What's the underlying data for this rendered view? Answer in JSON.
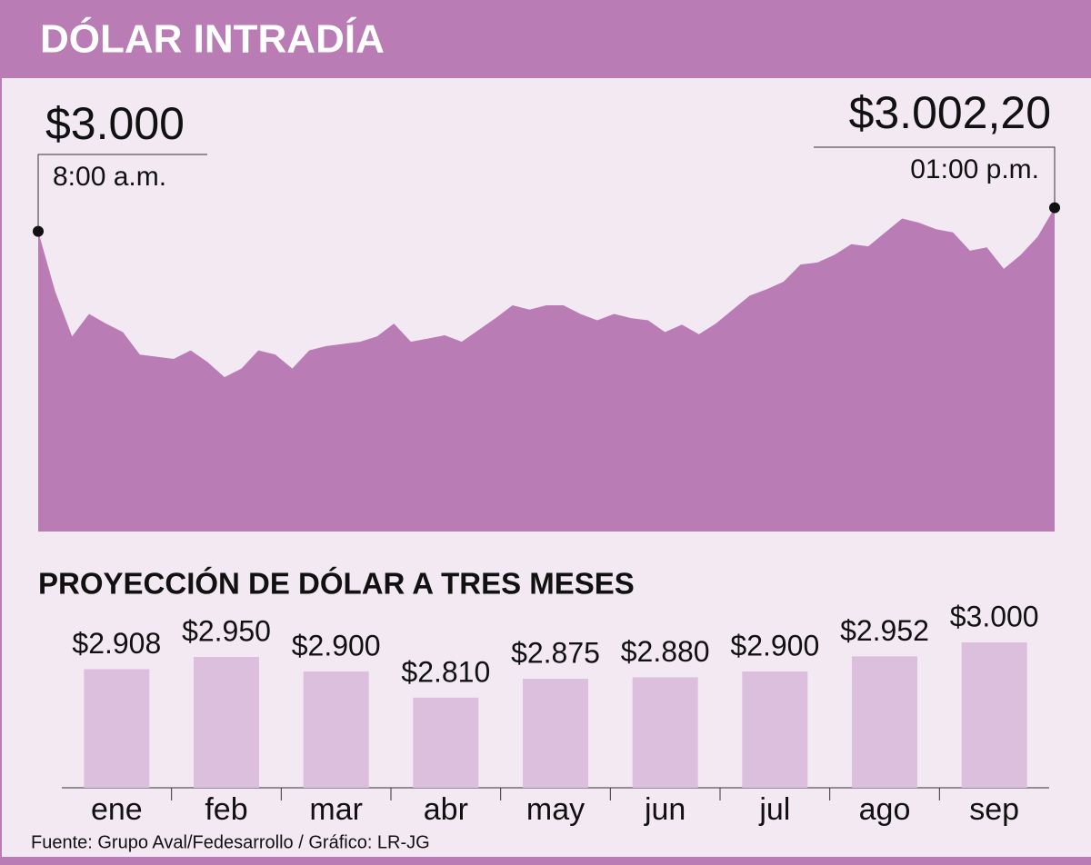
{
  "chart_data": [
    {
      "type": "area",
      "title": "DÓLAR INTRADÍA",
      "color": "#b97cb4",
      "values": [
        3000.0,
        2994.4,
        2990.2,
        2992.3,
        2991.4,
        2990.6,
        2988.5,
        2988.3,
        2988.1,
        2988.9,
        2987.8,
        2986.4,
        2987.2,
        2988.9,
        2988.5,
        2987.2,
        2988.9,
        2989.3,
        2989.5,
        2989.7,
        2990.2,
        2991.4,
        2989.7,
        2990.0,
        2990.3,
        2989.7,
        2990.8,
        2991.9,
        2993.1,
        2992.7,
        2993.1,
        2993.1,
        2992.3,
        2991.7,
        2992.3,
        2991.9,
        2991.7,
        2990.6,
        2991.3,
        2990.4,
        2991.4,
        2992.7,
        2994.0,
        2994.6,
        2995.3,
        2996.9,
        2997.1,
        2997.8,
        2998.8,
        2998.6,
        2999.9,
        3001.2,
        3000.8,
        3000.2,
        2999.9,
        2998.2,
        2998.5,
        2996.5,
        2997.8,
        2999.5,
        3002.2
      ],
      "ylim": [
        2972,
        3004
      ],
      "annotations": [
        {
          "label": "$3.000",
          "value": 3000,
          "time": "8:00 a.m."
        },
        {
          "label": "$3.002,20",
          "value": 3002.2,
          "time": "01:00 p.m."
        }
      ]
    },
    {
      "type": "bar",
      "title": "PROYECCIÓN DE DÓLAR A TRES MESES",
      "color": "#dbbfdc",
      "categories": [
        "ene",
        "feb",
        "mar",
        "abr",
        "may",
        "jun",
        "jul",
        "ago",
        "sep"
      ],
      "values": [
        2908,
        2950,
        2900,
        2810,
        2875,
        2880,
        2900,
        2952,
        3000
      ],
      "value_labels": [
        "$2.908",
        "$2.950",
        "$2.900",
        "$2.810",
        "$2.875",
        "$2.880",
        "$2.900",
        "$2.952",
        "$3.000"
      ],
      "ylim": [
        2500,
        3000
      ]
    }
  ],
  "source": "Fuente:  Grupo Aval/Fedesarrollo / Gráfico: LR-JG"
}
